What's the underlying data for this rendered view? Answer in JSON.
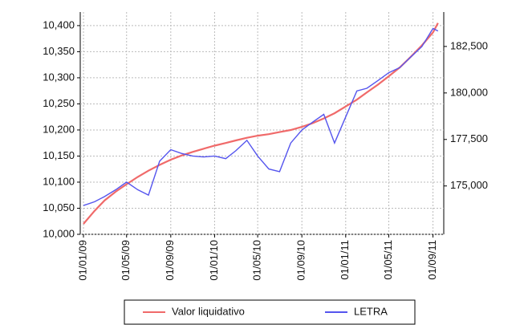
{
  "chart_data": {
    "type": "line",
    "x": [
      "01/01/09",
      "01/02/09",
      "01/03/09",
      "01/04/09",
      "01/05/09",
      "01/06/09",
      "01/07/09",
      "01/08/09",
      "01/09/09",
      "01/10/09",
      "01/11/09",
      "01/12/09",
      "01/01/10",
      "01/02/10",
      "01/03/10",
      "01/04/10",
      "01/05/10",
      "01/06/10",
      "01/07/10",
      "01/08/10",
      "01/09/10",
      "01/10/10",
      "01/11/10",
      "01/12/10",
      "01/01/11",
      "01/02/11",
      "01/03/11",
      "01/04/11",
      "01/05/11",
      "01/06/11",
      "01/07/11",
      "01/08/11",
      "01/09/11",
      "15/09/11"
    ],
    "series": [
      {
        "name": "Valor liquidativo",
        "color": "#f06a6a",
        "axis": "y",
        "values": [
          10020,
          10045,
          10065,
          10082,
          10096,
          10110,
          10122,
          10133,
          10143,
          10151,
          10158,
          10164,
          10170,
          10175,
          10180,
          10185,
          10189,
          10192,
          10196,
          10200,
          10206,
          10213,
          10222,
          10232,
          10245,
          10258,
          10272,
          10287,
          10303,
          10320,
          10340,
          10362,
          10387,
          10405
        ]
      },
      {
        "name": "LETRA",
        "color": "#5555ee",
        "axis": "y2",
        "values": [
          173950,
          174150,
          174430,
          174800,
          175210,
          174800,
          174510,
          176330,
          176950,
          176750,
          176610,
          176560,
          176610,
          176470,
          176890,
          177450,
          176610,
          175910,
          175770,
          177310,
          178010,
          178430,
          178850,
          177310,
          178710,
          180110,
          180250,
          180670,
          181090,
          181370,
          181930,
          182490,
          183470,
          183330
        ]
      }
    ],
    "xlim": [
      "23/12/08",
      "01/10/11"
    ],
    "xticks": [
      "01/01/09",
      "01/05/09",
      "01/09/09",
      "01/01/10",
      "01/05/10",
      "01/09/10",
      "01/01/11",
      "01/05/11",
      "01/09/11"
    ],
    "ylim": [
      10000,
      10426
    ],
    "yticks": [
      {
        "value": 10000,
        "label": "10,000"
      },
      {
        "value": 10050,
        "label": "10,050"
      },
      {
        "value": 10100,
        "label": "10,100"
      },
      {
        "value": 10150,
        "label": "10,150"
      },
      {
        "value": 10200,
        "label": "10,200"
      },
      {
        "value": 10250,
        "label": "10,250"
      },
      {
        "value": 10300,
        "label": "10,300"
      },
      {
        "value": 10350,
        "label": "10,350"
      },
      {
        "value": 10400,
        "label": "10,400"
      }
    ],
    "y2lim": [
      172400,
      184350
    ],
    "y2ticks": [
      {
        "value": 175000,
        "label": "175,000"
      },
      {
        "value": 177500,
        "label": "177,500"
      },
      {
        "value": 180000,
        "label": "180,000"
      },
      {
        "value": 182500,
        "label": "182,500"
      }
    ],
    "grid": true,
    "legend": "bottom"
  }
}
